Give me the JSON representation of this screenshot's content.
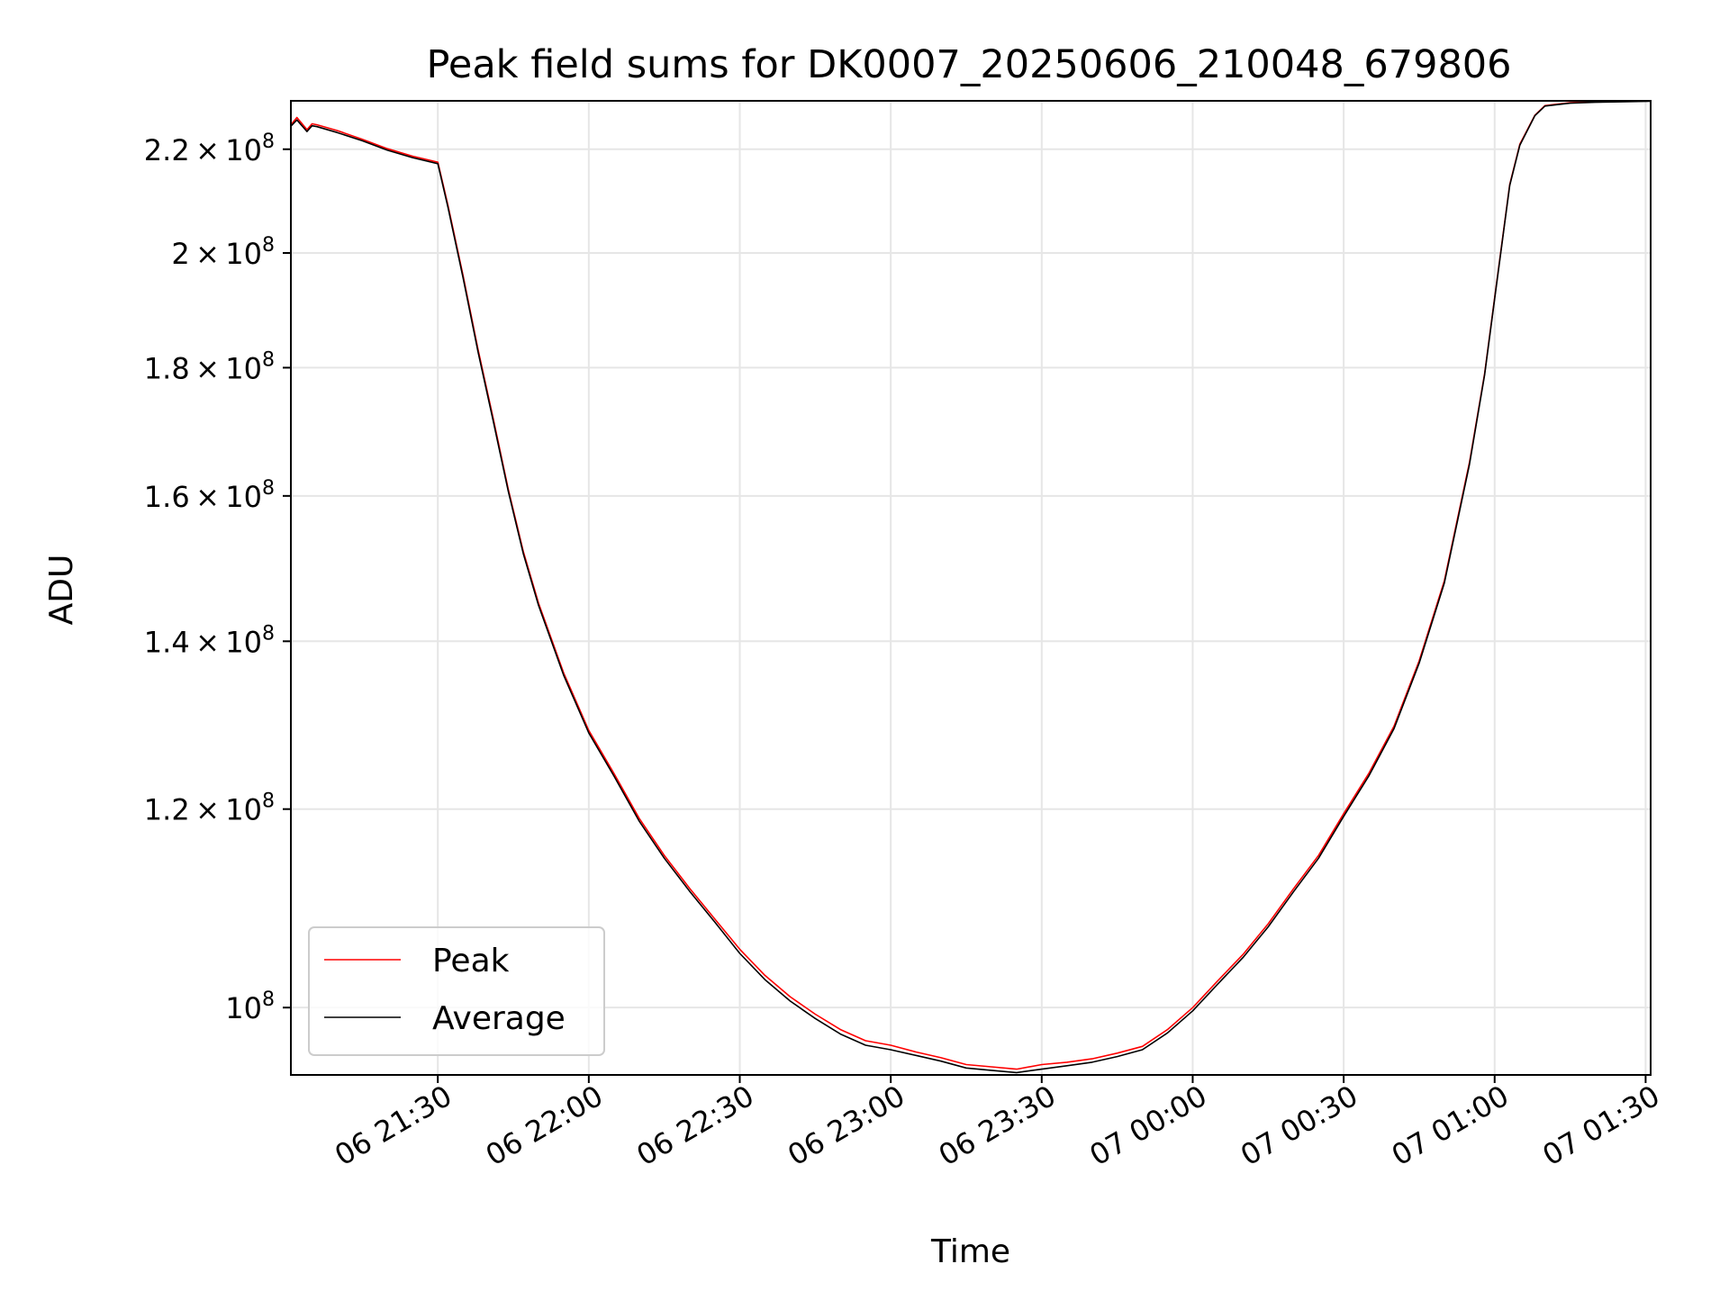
{
  "chart_data": {
    "type": "line",
    "title": "Peak field sums for DK0007_20250606_210048_679806",
    "xlabel": "Time",
    "ylabel": "ADU",
    "y_scale": "log",
    "grid": true,
    "legend_position": "lower-left",
    "xlim": [
      "2025-06-06 21:00:48",
      "2025-06-07 01:31:00"
    ],
    "ylim": [
      94000000,
      230000000
    ],
    "x_ticks": [
      {
        "t": "2025-06-06 21:30",
        "label": "06 21:30"
      },
      {
        "t": "2025-06-06 22:00",
        "label": "06 22:00"
      },
      {
        "t": "2025-06-06 22:30",
        "label": "06 22:30"
      },
      {
        "t": "2025-06-06 23:00",
        "label": "06 23:00"
      },
      {
        "t": "2025-06-06 23:30",
        "label": "06 23:30"
      },
      {
        "t": "2025-06-07 00:00",
        "label": "07 00:00"
      },
      {
        "t": "2025-06-07 00:30",
        "label": "07 00:30"
      },
      {
        "t": "2025-06-07 01:00",
        "label": "07 01:00"
      },
      {
        "t": "2025-06-07 01:30",
        "label": "07 01:30"
      }
    ],
    "y_ticks": [
      {
        "value": 100000000,
        "mantissa": "",
        "exp": "8"
      },
      {
        "value": 120000000,
        "mantissa": "1.2",
        "exp": "8"
      },
      {
        "value": 140000000,
        "mantissa": "1.4",
        "exp": "8"
      },
      {
        "value": 160000000,
        "mantissa": "1.6",
        "exp": "8"
      },
      {
        "value": 180000000,
        "mantissa": "1.8",
        "exp": "8"
      },
      {
        "value": 200000000,
        "mantissa": "2",
        "exp": "8"
      },
      {
        "value": 220000000,
        "mantissa": "2.2",
        "exp": "8"
      }
    ],
    "x": [
      "2025-06-06 21:00:48",
      "2025-06-06 21:02:00",
      "2025-06-06 21:04:00",
      "2025-06-06 21:05:00",
      "2025-06-06 21:06:00",
      "2025-06-06 21:10:00",
      "2025-06-06 21:15:00",
      "2025-06-06 21:20:00",
      "2025-06-06 21:25:00",
      "2025-06-06 21:30:00",
      "2025-06-06 21:32:00",
      "2025-06-06 21:35:00",
      "2025-06-06 21:38:00",
      "2025-06-06 21:41:00",
      "2025-06-06 21:44:00",
      "2025-06-06 21:47:00",
      "2025-06-06 21:50:00",
      "2025-06-06 21:55:00",
      "2025-06-06 22:00:00",
      "2025-06-06 22:05:00",
      "2025-06-06 22:10:00",
      "2025-06-06 22:15:00",
      "2025-06-06 22:20:00",
      "2025-06-06 22:25:00",
      "2025-06-06 22:30:00",
      "2025-06-06 22:35:00",
      "2025-06-06 22:40:00",
      "2025-06-06 22:45:00",
      "2025-06-06 22:50:00",
      "2025-06-06 22:55:00",
      "2025-06-06 23:00:00",
      "2025-06-06 23:05:00",
      "2025-06-06 23:10:00",
      "2025-06-06 23:15:00",
      "2025-06-06 23:20:00",
      "2025-06-06 23:25:00",
      "2025-06-06 23:30:00",
      "2025-06-06 23:35:00",
      "2025-06-06 23:40:00",
      "2025-06-06 23:45:00",
      "2025-06-06 23:50:00",
      "2025-06-06 23:55:00",
      "2025-06-07 00:00:00",
      "2025-06-07 00:05:00",
      "2025-06-07 00:10:00",
      "2025-06-07 00:15:00",
      "2025-06-07 00:20:00",
      "2025-06-07 00:25:00",
      "2025-06-07 00:30:00",
      "2025-06-07 00:35:00",
      "2025-06-07 00:40:00",
      "2025-06-07 00:45:00",
      "2025-06-07 00:50:00",
      "2025-06-07 00:55:00",
      "2025-06-07 00:58:00",
      "2025-06-07 01:00:00",
      "2025-06-07 01:03:00",
      "2025-06-07 01:05:00",
      "2025-06-07 01:08:00",
      "2025-06-07 01:10:00",
      "2025-06-07 01:15:00",
      "2025-06-07 01:20:00",
      "2025-06-07 01:25:00",
      "2025-06-07 01:31:00"
    ],
    "series": [
      {
        "name": "Peak",
        "color": "#ff0000",
        "values": [
          225000000,
          226500000,
          224000000,
          225200000,
          225000000,
          223800000,
          222000000,
          220100000,
          218600000,
          217400000,
          209000000,
          196000000,
          183000000,
          171800000,
          161000000,
          152000000,
          145000000,
          136000000,
          129000000,
          124000000,
          119000000,
          115000000,
          111600000,
          108500000,
          105500000,
          103000000,
          101000000,
          99400000,
          98000000,
          97000000,
          96600000,
          96000000,
          95500000,
          94900000,
          94700000,
          94500000,
          94900000,
          95100000,
          95400000,
          95900000,
          96500000,
          98000000,
          100000000,
          102500000,
          105000000,
          108000000,
          111500000,
          115000000,
          119500000,
          124000000,
          129500000,
          137500000,
          148000000,
          165000000,
          179000000,
          192000000,
          213000000,
          221000000,
          227000000,
          229000000,
          229600000,
          229800000,
          229900000,
          230000000
        ]
      },
      {
        "name": "Average",
        "color": "#000000",
        "values": [
          224700000,
          226000000,
          223600000,
          224800000,
          224600000,
          223400000,
          221700000,
          219800000,
          218300000,
          217100000,
          208600000,
          195600000,
          182600000,
          171400000,
          160700000,
          151700000,
          144700000,
          135700000,
          128700000,
          123700000,
          118700000,
          114700000,
          111300000,
          108200000,
          105100000,
          102600000,
          100600000,
          99000000,
          97600000,
          96600000,
          96200000,
          95700000,
          95200000,
          94600000,
          94400000,
          94200000,
          94500000,
          94800000,
          95100000,
          95600000,
          96200000,
          97700000,
          99700000,
          102200000,
          104700000,
          107700000,
          111200000,
          114700000,
          119200000,
          123700000,
          129200000,
          137200000,
          147700000,
          164700000,
          178800000,
          191800000,
          212800000,
          220800000,
          226900000,
          228900000,
          229500000,
          229700000,
          229800000,
          229900000
        ]
      }
    ]
  }
}
